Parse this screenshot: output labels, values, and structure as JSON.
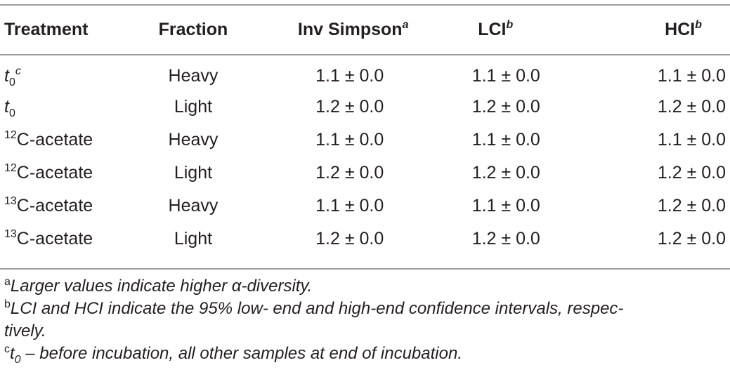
{
  "headers": {
    "treatment": "Treatment",
    "fraction": "Fraction",
    "inv_simpson": "Inv Simpson",
    "inv_simpson_mark": "a",
    "lci": "LCI",
    "lci_mark": "b",
    "hci": "HCI",
    "hci_mark": "b"
  },
  "rows": [
    {
      "pre": "",
      "base": "t",
      "sub": "0",
      "post": "",
      "mark": "c",
      "fraction": "Heavy",
      "inv": "1.1 ± 0.0",
      "lci": "1.1 ± 0.0",
      "hci": "1.1 ± 0.0"
    },
    {
      "pre": "",
      "base": "t",
      "sub": "0",
      "post": "",
      "mark": "",
      "fraction": "Light",
      "inv": "1.2 ± 0.0",
      "lci": "1.2 ± 0.0",
      "hci": "1.2 ± 0.0"
    },
    {
      "pre": "12",
      "base": "",
      "sub": "",
      "post": "C-acetate",
      "mark": "",
      "fraction": "Heavy",
      "inv": "1.1 ± 0.0",
      "lci": "1.1 ± 0.0",
      "hci": "1.1 ± 0.0"
    },
    {
      "pre": "12",
      "base": "",
      "sub": "",
      "post": "C-acetate",
      "mark": "",
      "fraction": "Light",
      "inv": "1.2 ± 0.0",
      "lci": "1.2 ± 0.0",
      "hci": "1.2 ± 0.0"
    },
    {
      "pre": "13",
      "base": "",
      "sub": "",
      "post": "C-acetate",
      "mark": "",
      "fraction": "Heavy",
      "inv": "1.1 ± 0.0",
      "lci": "1.1 ± 0.0",
      "hci": "1.2 ± 0.0"
    },
    {
      "pre": "13",
      "base": "",
      "sub": "",
      "post": "C-acetate",
      "mark": "",
      "fraction": "Light",
      "inv": "1.2 ± 0.0",
      "lci": "1.2 ± 0.0",
      "hci": "1.2 ± 0.0"
    }
  ],
  "footnotes": {
    "a_mark": "a",
    "a_text": "Larger values indicate higher α-diversity.",
    "b_mark": "b",
    "b_text_line1": "LCI and HCI indicate the 95% low- end and high-end confidence intervals, respec-",
    "b_text_line2": "tively.",
    "c_mark": "c",
    "c_base": "t",
    "c_sub": "0",
    "c_text": " – before incubation, all other samples at end of incubation."
  }
}
